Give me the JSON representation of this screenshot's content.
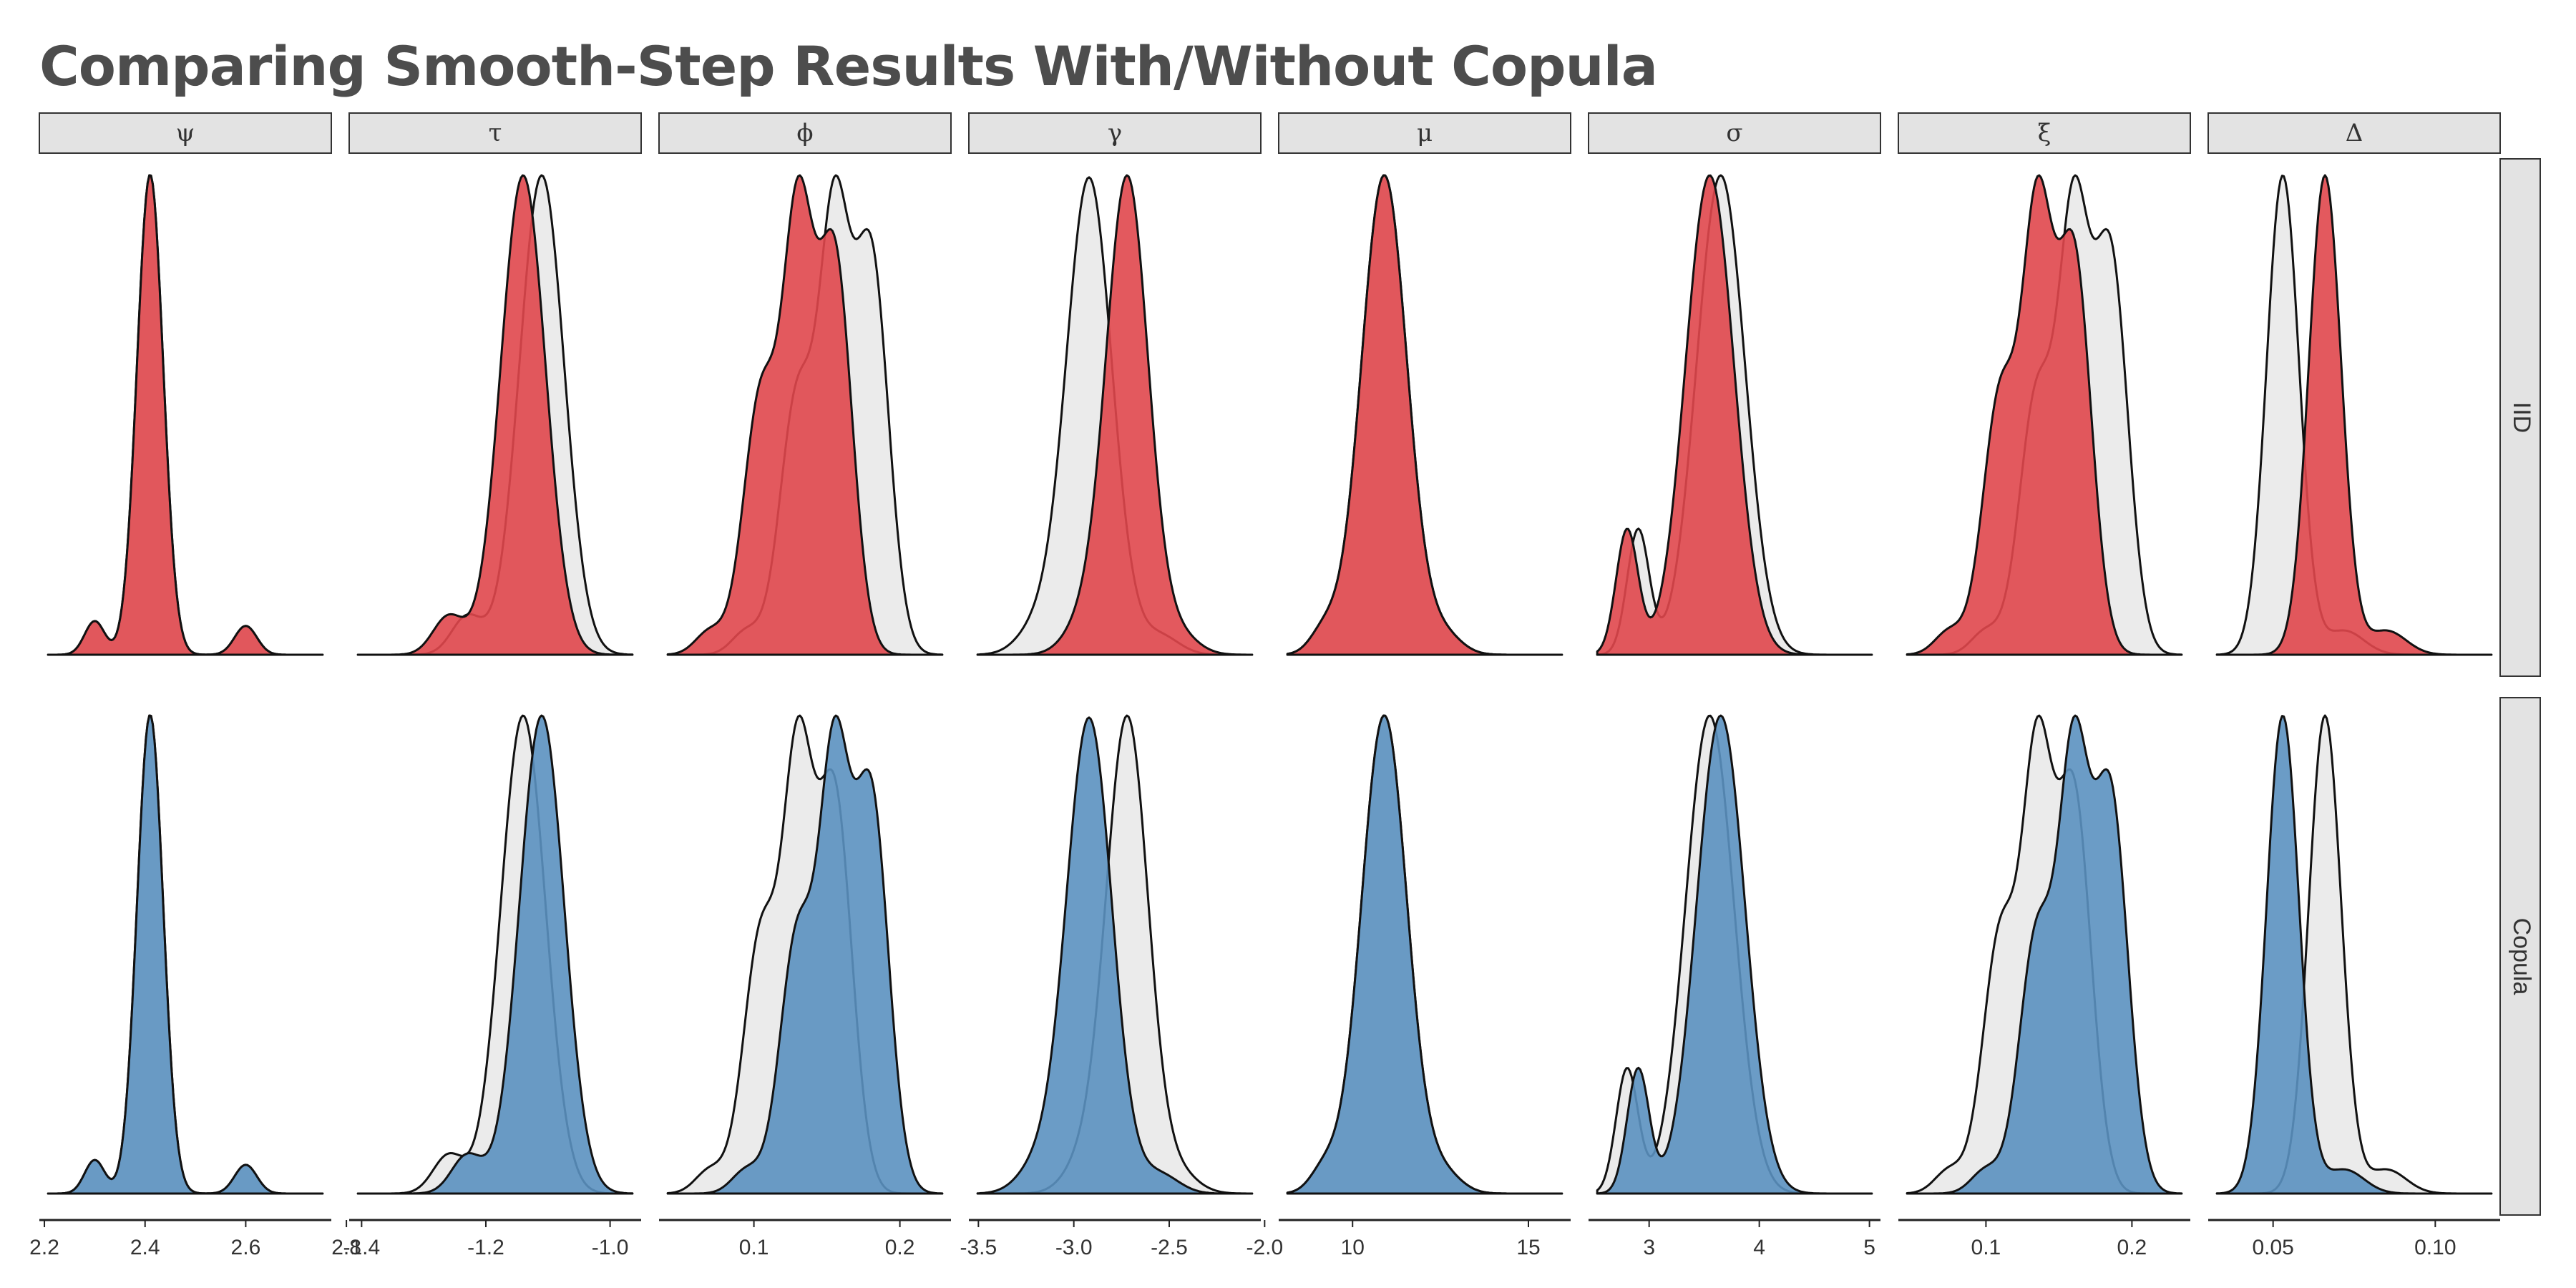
{
  "title": "Comparing Smooth-Step Results With/Without Copula",
  "colors": {
    "iid": "#e0474c",
    "copula": "#5b91c0",
    "reference": "#ebebeb",
    "outline": "#111111"
  },
  "chart_data": {
    "type": "density",
    "title": "Comparing Smooth-Step Results With/Without Copula",
    "rows": [
      "IID",
      "Copula"
    ],
    "grid": false,
    "facets": [
      {
        "label": "ψ",
        "xlim": [
          2.19,
          2.77
        ],
        "ticks": [
          2.2,
          2.4,
          2.6,
          2.8
        ],
        "tick_labels": [
          "2.2",
          "2.4",
          "2.6",
          "2.8"
        ],
        "iid": {
          "peaks": [
            [
              2.41,
              0.026,
              1.0
            ],
            [
              2.3,
              0.02,
              0.07
            ],
            [
              2.6,
              0.022,
              0.06
            ]
          ]
        },
        "copula": {
          "peaks": [
            [
              2.41,
              0.026,
              1.0
            ],
            [
              2.3,
              0.02,
              0.07
            ],
            [
              2.6,
              0.022,
              0.06
            ]
          ]
        }
      },
      {
        "label": "τ",
        "xlim": [
          -1.42,
          -0.95
        ],
        "ticks": [
          -1.4,
          -1.2,
          -1.0
        ],
        "tick_labels": [
          "-1.4",
          "-1.2",
          "-1.0"
        ],
        "iid": {
          "peaks": [
            [
              -1.14,
              0.036,
              1.0
            ],
            [
              -1.26,
              0.025,
              0.08
            ]
          ]
        },
        "copula": {
          "peaks": [
            [
              -1.11,
              0.036,
              1.0
            ],
            [
              -1.23,
              0.025,
              0.08
            ]
          ]
        }
      },
      {
        "label": "ϕ",
        "xlim": [
          0.035,
          0.235
        ],
        "ticks": [
          0.1,
          0.2
        ],
        "tick_labels": [
          "0.1",
          "0.2"
        ],
        "iid": {
          "peaks": [
            [
              0.105,
              0.012,
              0.55
            ],
            [
              0.13,
              0.01,
              0.85
            ],
            [
              0.155,
              0.012,
              0.85
            ],
            [
              0.07,
              0.01,
              0.05
            ]
          ]
        },
        "copula": {
          "peaks": [
            [
              0.13,
              0.012,
              0.55
            ],
            [
              0.155,
              0.01,
              0.85
            ],
            [
              0.18,
              0.012,
              0.85
            ],
            [
              0.095,
              0.01,
              0.05
            ]
          ]
        }
      },
      {
        "label": "γ",
        "xlim": [
          -3.55,
          -2.02
        ],
        "ticks": [
          -3.5,
          -3.0,
          -2.5,
          -2.0
        ],
        "tick_labels": [
          "-3.5",
          "-3.0",
          "-2.5",
          "-2.0"
        ],
        "iid": {
          "peaks": [
            [
              -2.72,
              0.11,
              1.0
            ],
            [
              -2.95,
              0.1,
              0.06
            ],
            [
              -2.45,
              0.1,
              0.04
            ]
          ]
        },
        "copula": {
          "peaks": [
            [
              -2.92,
              0.12,
              1.0
            ],
            [
              -3.2,
              0.1,
              0.05
            ],
            [
              -2.55,
              0.1,
              0.04
            ]
          ]
        }
      },
      {
        "label": "μ",
        "xlim": [
          7.9,
          16.2
        ],
        "ticks": [
          10,
          15
        ],
        "tick_labels": [
          "10",
          "15"
        ],
        "iid": {
          "peaks": [
            [
              10.9,
              0.65,
              1.0
            ],
            [
              9.2,
              0.4,
              0.05
            ],
            [
              12.6,
              0.5,
              0.04
            ]
          ]
        },
        "copula": {
          "peaks": [
            [
              10.9,
              0.65,
              1.0
            ],
            [
              9.2,
              0.4,
              0.05
            ],
            [
              12.6,
              0.5,
              0.04
            ]
          ]
        }
      },
      {
        "label": "σ",
        "xlim": [
          2.45,
          5.1
        ],
        "ticks": [
          3,
          4,
          5
        ],
        "tick_labels": [
          "3",
          "4",
          "5"
        ],
        "iid": {
          "peaks": [
            [
              3.55,
              0.22,
              1.0
            ],
            [
              2.8,
              0.1,
              0.26
            ]
          ]
        },
        "copula": {
          "peaks": [
            [
              3.65,
              0.22,
              1.0
            ],
            [
              2.9,
              0.1,
              0.26
            ]
          ]
        }
      },
      {
        "label": "ξ",
        "xlim": [
          0.04,
          0.24
        ],
        "ticks": [
          0.1,
          0.2
        ],
        "tick_labels": [
          "0.1",
          "0.2"
        ],
        "iid": {
          "peaks": [
            [
              0.11,
              0.012,
              0.55
            ],
            [
              0.135,
              0.01,
              0.85
            ],
            [
              0.16,
              0.012,
              0.85
            ],
            [
              0.075,
              0.01,
              0.05
            ]
          ]
        },
        "copula": {
          "peaks": [
            [
              0.135,
              0.012,
              0.55
            ],
            [
              0.16,
              0.01,
              0.85
            ],
            [
              0.185,
              0.012,
              0.85
            ],
            [
              0.1,
              0.01,
              0.05
            ]
          ]
        }
      },
      {
        "label": "Δ",
        "xlim": [
          0.03,
          0.12
        ],
        "ticks": [
          0.05,
          0.1
        ],
        "tick_labels": [
          "0.05",
          "0.10"
        ],
        "iid": {
          "peaks": [
            [
              0.066,
              0.005,
              1.0
            ],
            [
              0.085,
              0.006,
              0.05
            ]
          ]
        },
        "copula": {
          "peaks": [
            [
              0.053,
              0.005,
              1.0
            ],
            [
              0.072,
              0.006,
              0.05
            ]
          ]
        }
      }
    ]
  }
}
